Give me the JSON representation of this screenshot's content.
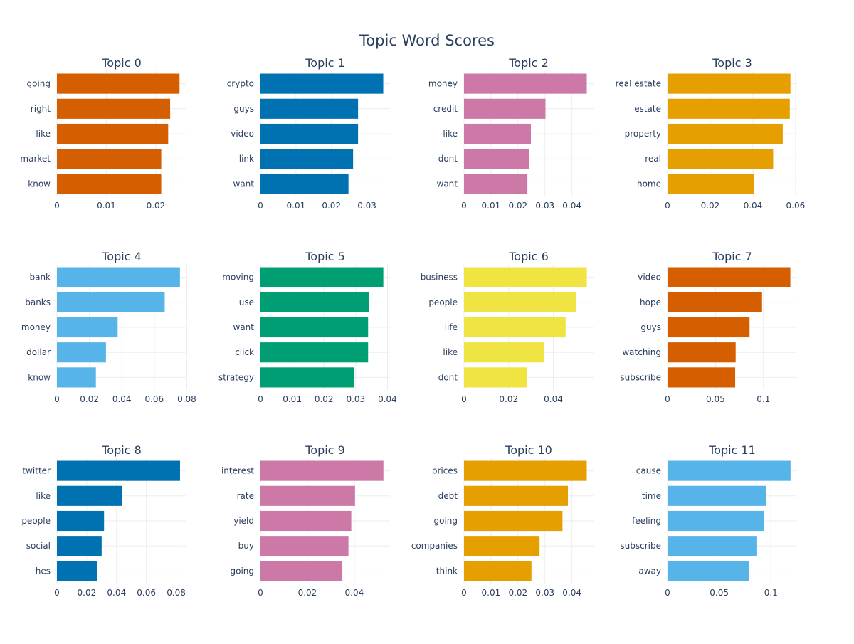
{
  "title": "Topic Word Scores",
  "chart_data": [
    {
      "type": "bar",
      "orientation": "horizontal",
      "title": "Topic 0",
      "color": "#D55E00",
      "categories": [
        "going",
        "right",
        "like",
        "market",
        "know"
      ],
      "values": [
        0.0248,
        0.0229,
        0.0225,
        0.0211,
        0.0211
      ],
      "xlim": [
        0,
        0.0262
      ],
      "xticks": [
        0,
        0.01,
        0.02
      ],
      "xtick_labels": [
        "0",
        "0.01",
        "0.02"
      ]
    },
    {
      "type": "bar",
      "orientation": "horizontal",
      "title": "Topic 1",
      "color": "#0072B2",
      "categories": [
        "crypto",
        "guys",
        "video",
        "link",
        "want"
      ],
      "values": [
        0.0346,
        0.0275,
        0.0275,
        0.0261,
        0.0248
      ],
      "xlim": [
        0,
        0.0365
      ],
      "xticks": [
        0,
        0.01,
        0.02,
        0.03
      ],
      "xtick_labels": [
        "0",
        "0.01",
        "0.02",
        "0.03"
      ]
    },
    {
      "type": "bar",
      "orientation": "horizontal",
      "title": "Topic 2",
      "color": "#CC79A7",
      "categories": [
        "money",
        "credit",
        "like",
        "dont",
        "want"
      ],
      "values": [
        0.0455,
        0.0302,
        0.0248,
        0.0242,
        0.0235
      ],
      "xlim": [
        0,
        0.048
      ],
      "xticks": [
        0,
        0.01,
        0.02,
        0.03,
        0.04
      ],
      "xtick_labels": [
        "0",
        "0.01",
        "0.02",
        "0.03",
        "0.04"
      ]
    },
    {
      "type": "bar",
      "orientation": "horizontal",
      "title": "Topic 3",
      "color": "#E69F00",
      "categories": [
        "real estate",
        "estate",
        "property",
        "real",
        "home"
      ],
      "values": [
        0.0576,
        0.0573,
        0.054,
        0.0495,
        0.0404
      ],
      "xlim": [
        0,
        0.0607
      ],
      "xticks": [
        0,
        0.02,
        0.04,
        0.06
      ],
      "xtick_labels": [
        "0",
        "0.02",
        "0.04",
        "0.06"
      ]
    },
    {
      "type": "bar",
      "orientation": "horizontal",
      "title": "Topic 4",
      "color": "#56B4E9",
      "categories": [
        "bank",
        "banks",
        "money",
        "dollar",
        "know"
      ],
      "values": [
        0.0758,
        0.0664,
        0.0374,
        0.0302,
        0.024
      ],
      "xlim": [
        0,
        0.0798
      ],
      "xticks": [
        0,
        0.02,
        0.04,
        0.06,
        0.08
      ],
      "xtick_labels": [
        "0",
        "0.02",
        "0.04",
        "0.06",
        "0.08"
      ]
    },
    {
      "type": "bar",
      "orientation": "horizontal",
      "title": "Topic 5",
      "color": "#009E73",
      "categories": [
        "moving",
        "use",
        "want",
        "click",
        "strategy"
      ],
      "values": [
        0.0387,
        0.0342,
        0.0339,
        0.0339,
        0.0296
      ],
      "xlim": [
        0,
        0.0408
      ],
      "xticks": [
        0,
        0.01,
        0.02,
        0.03,
        0.04
      ],
      "xtick_labels": [
        "0",
        "0.01",
        "0.02",
        "0.03",
        "0.04"
      ]
    },
    {
      "type": "bar",
      "orientation": "horizontal",
      "title": "Topic 6",
      "color": "#F0E442",
      "categories": [
        "business",
        "people",
        "life",
        "like",
        "dont"
      ],
      "values": [
        0.055,
        0.0501,
        0.0455,
        0.0357,
        0.0281
      ],
      "xlim": [
        0,
        0.058
      ],
      "xticks": [
        0,
        0.02,
        0.04
      ],
      "xtick_labels": [
        "0",
        "0.02",
        "0.04"
      ]
    },
    {
      "type": "bar",
      "orientation": "horizontal",
      "title": "Topic 7",
      "color": "#D55E00",
      "categories": [
        "video",
        "hope",
        "guys",
        "watching",
        "subscribe"
      ],
      "values": [
        0.128,
        0.0985,
        0.0855,
        0.071,
        0.0705
      ],
      "xlim": [
        0,
        0.135
      ],
      "xticks": [
        0,
        0.05,
        0.1
      ],
      "xtick_labels": [
        "0",
        "0.05",
        "0.1"
      ]
    },
    {
      "type": "bar",
      "orientation": "horizontal",
      "title": "Topic 8",
      "color": "#0072B2",
      "categories": [
        "twitter",
        "like",
        "people",
        "social",
        "hes"
      ],
      "values": [
        0.0826,
        0.0438,
        0.0316,
        0.03,
        0.027
      ],
      "xlim": [
        0,
        0.0869
      ],
      "xticks": [
        0,
        0.02,
        0.04,
        0.06,
        0.08
      ],
      "xtick_labels": [
        "0",
        "0.02",
        "0.04",
        "0.06",
        "0.08"
      ]
    },
    {
      "type": "bar",
      "orientation": "horizontal",
      "title": "Topic 9",
      "color": "#CC79A7",
      "categories": [
        "interest",
        "rate",
        "yield",
        "buy",
        "going"
      ],
      "values": [
        0.0524,
        0.0403,
        0.0387,
        0.0375,
        0.0349
      ],
      "xlim": [
        0,
        0.0552
      ],
      "xticks": [
        0,
        0.02,
        0.04
      ],
      "xtick_labels": [
        "0",
        "0.02",
        "0.04"
      ]
    },
    {
      "type": "bar",
      "orientation": "horizontal",
      "title": "Topic 10",
      "color": "#E69F00",
      "categories": [
        "prices",
        "debt",
        "going",
        "companies",
        "think"
      ],
      "values": [
        0.0455,
        0.0385,
        0.0365,
        0.028,
        0.025
      ],
      "xlim": [
        0,
        0.048
      ],
      "xticks": [
        0,
        0.01,
        0.02,
        0.03,
        0.04
      ],
      "xtick_labels": [
        "0",
        "0.01",
        "0.02",
        "0.03",
        "0.04"
      ]
    },
    {
      "type": "bar",
      "orientation": "horizontal",
      "title": "Topic 11",
      "color": "#56B4E9",
      "categories": [
        "cause",
        "time",
        "feeling",
        "subscribe",
        "away"
      ],
      "values": [
        0.119,
        0.0955,
        0.093,
        0.086,
        0.0785
      ],
      "xlim": [
        0,
        0.1253
      ],
      "xticks": [
        0,
        0.05,
        0.1
      ],
      "xtick_labels": [
        "0",
        "0.05",
        "0.1"
      ]
    }
  ]
}
